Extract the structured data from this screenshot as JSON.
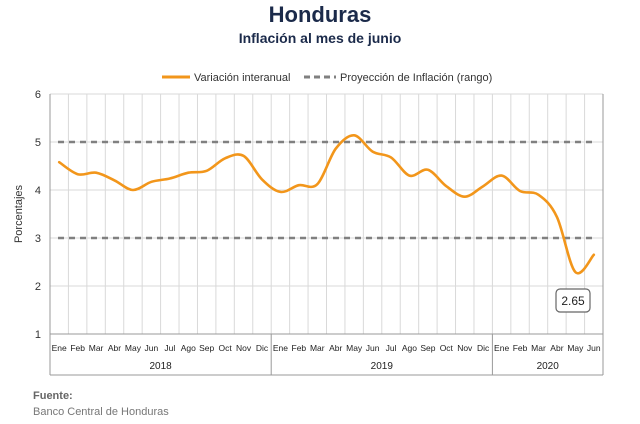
{
  "header": {
    "title": "Honduras",
    "subtitle": "Inflación al mes de junio"
  },
  "source": {
    "label": "Fuente:",
    "text": "Banco Central de Honduras"
  },
  "chart_data": {
    "type": "line",
    "title": "Honduras",
    "subtitle": "Inflación al mes de junio",
    "ylabel": "Porcentajes",
    "xlabel": "",
    "ylim": [
      1,
      6
    ],
    "yticks": [
      1,
      2,
      3,
      4,
      5,
      6
    ],
    "grid": true,
    "legend_position": "top",
    "month_labels": [
      "Ene",
      "Feb",
      "Mar",
      "Abr",
      "May",
      "Jun",
      "Jul",
      "Ago",
      "Sep",
      "Oct",
      "Nov",
      "Dic",
      "Ene",
      "Feb",
      "Mar",
      "Abr",
      "May",
      "Jun",
      "Jul",
      "Ago",
      "Sep",
      "Oct",
      "Nov",
      "Dic",
      "Ene",
      "Feb",
      "Mar",
      "Abr",
      "May",
      "Jun"
    ],
    "years": [
      {
        "label": "2018",
        "start": 0,
        "count": 12
      },
      {
        "label": "2019",
        "start": 12,
        "count": 12
      },
      {
        "label": "2020",
        "start": 24,
        "count": 6
      }
    ],
    "series": [
      {
        "name": "Variación interanual",
        "color": "#f2961b",
        "style": "solid",
        "values": [
          4.58,
          4.33,
          4.36,
          4.2,
          4.0,
          4.17,
          4.24,
          4.36,
          4.4,
          4.66,
          4.71,
          4.22,
          3.96,
          4.1,
          4.12,
          4.86,
          5.14,
          4.8,
          4.68,
          4.3,
          4.42,
          4.08,
          3.86,
          4.08,
          4.3,
          3.98,
          3.9,
          3.44,
          2.29,
          2.65
        ]
      },
      {
        "name": "Proyección de Inflación (rango)",
        "color": "#808080",
        "style": "dashed",
        "lines": [
          5,
          3
        ]
      }
    ],
    "annotations": [
      {
        "text": "2.65",
        "index": 29,
        "value": 2.65
      }
    ]
  }
}
